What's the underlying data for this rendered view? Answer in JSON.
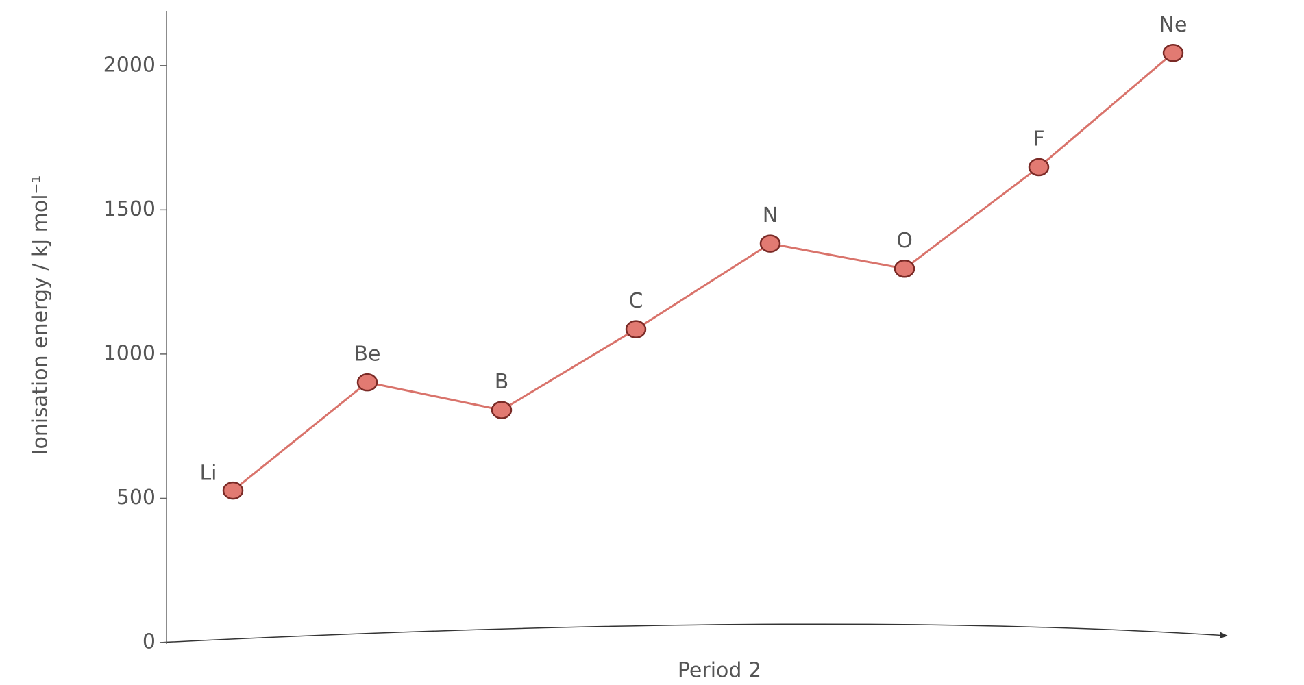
{
  "chart_data": {
    "type": "line",
    "y_label": "Ionisation energy / kJ mol⁻¹",
    "x_label": "Period 2",
    "categories": [
      "Li",
      "Be",
      "B",
      "C",
      "N",
      "O",
      "F",
      "Ne"
    ],
    "series": [
      {
        "name": "Ionisation energy",
        "color": "#d9736b",
        "values": [
          527,
          902,
          806,
          1086,
          1383,
          1296,
          1648,
          2044
        ]
      }
    ],
    "ylim": [
      0,
      2180
    ],
    "yticks": [
      0,
      500,
      1000,
      1500,
      2000
    ],
    "marker_fill": "#e27a72",
    "marker_edge": "#7a2a26"
  }
}
